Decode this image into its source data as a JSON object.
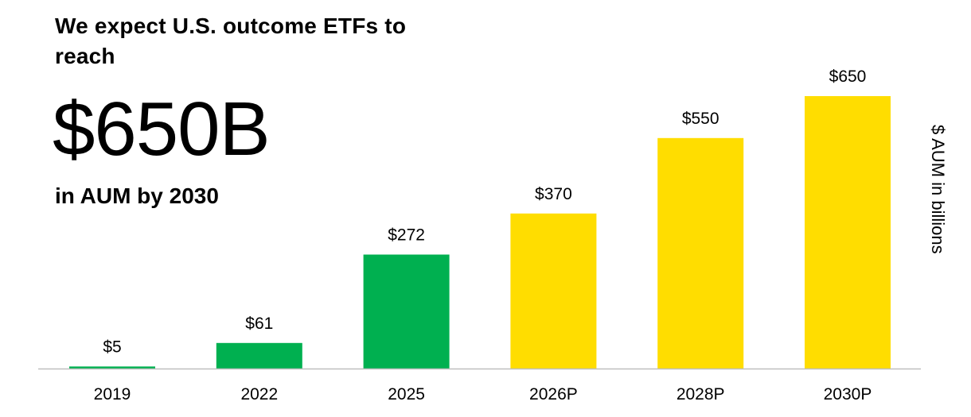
{
  "header": {
    "headline": "We expect U.S. outcome ETFs to reach",
    "big_number": "$650B",
    "subline": "in AUM by 2030"
  },
  "colors": {
    "actual": "#00B050",
    "projected": "#FFDD00",
    "axis": "#bfbfbf"
  },
  "chart_data": {
    "type": "bar",
    "categories": [
      "2019",
      "2022",
      "2025",
      "2026P",
      "2028P",
      "2030P"
    ],
    "values": [
      5,
      61,
      272,
      370,
      550,
      650
    ],
    "data_labels": [
      "$5",
      "$61",
      "$272",
      "$370",
      "$550",
      "$650"
    ],
    "bar_status": [
      "actual",
      "actual",
      "actual",
      "projected",
      "projected",
      "projected"
    ],
    "ylabel": "$ AUM in billions",
    "xlabel": "",
    "ylim": [
      0,
      650
    ],
    "grid": false,
    "legend": "none"
  }
}
